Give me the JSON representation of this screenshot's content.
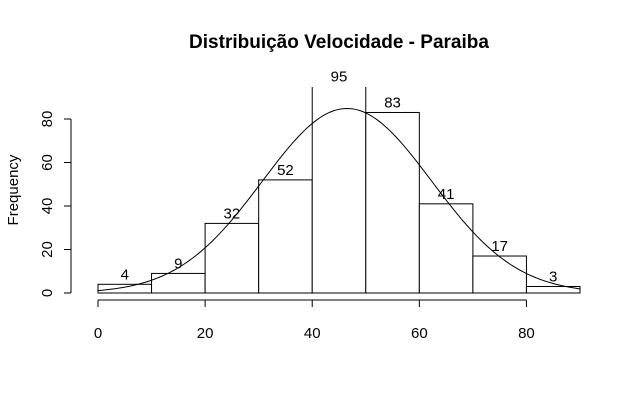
{
  "chart_data": {
    "type": "bar",
    "title": "Distribuição Velocidade - Paraiba",
    "xlabel": "",
    "ylabel": "Frequency",
    "bins": [
      [
        0,
        10
      ],
      [
        10,
        20
      ],
      [
        20,
        30
      ],
      [
        30,
        40
      ],
      [
        40,
        50
      ],
      [
        50,
        60
      ],
      [
        60,
        70
      ],
      [
        70,
        80
      ],
      [
        80,
        90
      ]
    ],
    "values": [
      4,
      9,
      32,
      52,
      95,
      83,
      41,
      17,
      3
    ],
    "data_labels": [
      "4",
      "9",
      "32",
      "52",
      "95",
      "83",
      "41",
      "17",
      "3"
    ],
    "xlim": [
      0,
      90
    ],
    "ylim": [
      0,
      95
    ],
    "x_ticks": [
      0,
      20,
      40,
      60,
      80
    ],
    "x_tick_labels": [
      "0",
      "20",
      "40",
      "60",
      "80"
    ],
    "y_ticks": [
      0,
      20,
      40,
      60,
      80
    ],
    "y_tick_labels": [
      "0",
      "20",
      "40",
      "60",
      "80"
    ],
    "overlay_curve": {
      "type": "normal-density",
      "mean": 46.5,
      "sd": 15.8,
      "scale": 3360
    },
    "grid": false,
    "legend": "none"
  }
}
